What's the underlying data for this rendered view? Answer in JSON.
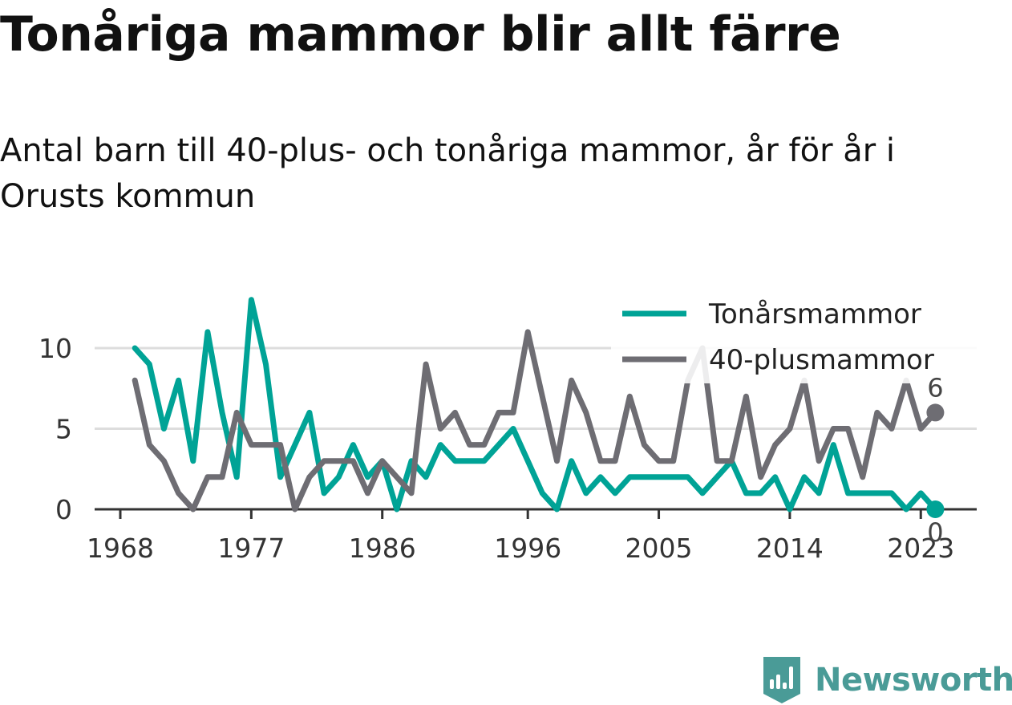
{
  "title": "Tonåriga mammor blir allt färre",
  "subtitle": "Antal barn till 40-plus- och tonåriga mammor, år för år i Orusts kommun",
  "brand": {
    "name": "Newsworthy",
    "color": "#4a9b97"
  },
  "chart_data": {
    "type": "line",
    "x_ticks": [
      "1968",
      "1977",
      "1986",
      "1996",
      "2005",
      "2014",
      "2023"
    ],
    "y_ticks": [
      "0",
      "5",
      "10"
    ],
    "ylim": [
      0,
      13.5
    ],
    "xlim": [
      1968,
      2025
    ],
    "grid": true,
    "legend_position": "top-right",
    "x": [
      1969,
      1970,
      1971,
      1972,
      1973,
      1974,
      1975,
      1976,
      1977,
      1978,
      1979,
      1980,
      1981,
      1982,
      1983,
      1984,
      1985,
      1986,
      1987,
      1988,
      1989,
      1990,
      1991,
      1992,
      1993,
      1994,
      1995,
      1996,
      1997,
      1998,
      1999,
      2000,
      2001,
      2002,
      2003,
      2004,
      2005,
      2006,
      2007,
      2008,
      2009,
      2010,
      2011,
      2012,
      2013,
      2014,
      2015,
      2016,
      2017,
      2018,
      2019,
      2020,
      2021,
      2022,
      2023,
      2024
    ],
    "series": [
      {
        "name": "Tonårsmammor",
        "color": "#00a396",
        "values": [
          10,
          9,
          5,
          8,
          3,
          11,
          6,
          2,
          13,
          9,
          2,
          4,
          6,
          1,
          2,
          4,
          2,
          3,
          0,
          3,
          2,
          4,
          3,
          3,
          3,
          4,
          5,
          3,
          1,
          0,
          3,
          1,
          2,
          1,
          2,
          2,
          2,
          2,
          2,
          1,
          2,
          3,
          1,
          1,
          2,
          0,
          2,
          1,
          4,
          1,
          1,
          1,
          1,
          0,
          1,
          0
        ],
        "end_label": "0"
      },
      {
        "name": "40-plusmammor",
        "color": "#6e6d73",
        "values": [
          8,
          4,
          3,
          1,
          0,
          2,
          2,
          6,
          4,
          4,
          4,
          0,
          2,
          3,
          3,
          3,
          1,
          3,
          2,
          1,
          9,
          5,
          6,
          4,
          4,
          6,
          6,
          11,
          7,
          3,
          8,
          6,
          3,
          3,
          7,
          4,
          3,
          3,
          8,
          10,
          3,
          3,
          7,
          2,
          4,
          5,
          8,
          3,
          5,
          5,
          2,
          6,
          5,
          8,
          5,
          6
        ],
        "end_label": "6"
      }
    ]
  }
}
